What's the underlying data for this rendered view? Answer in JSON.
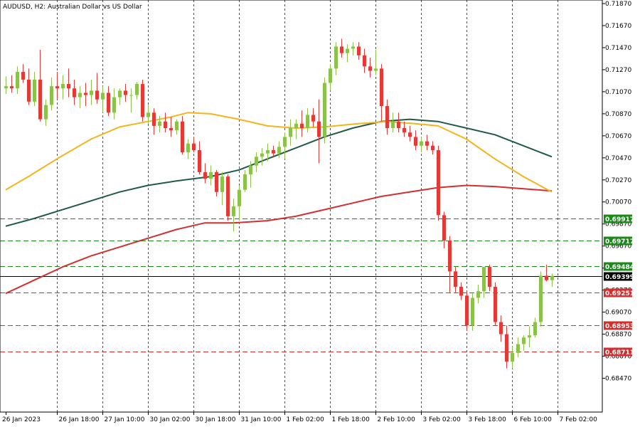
{
  "header": {
    "title": "AUDUSD, H2:  Australian Dollar vs US Dollar"
  },
  "colors": {
    "bull": "#8bc34a",
    "bear": "#e53935",
    "ma_fast": "#f5b41a",
    "ma_mid": "#1f5a48",
    "ma_slow": "#d32f2f",
    "support": "#1b8a1b",
    "resistance": "#d32f2f",
    "price": "#000000"
  },
  "chart_data": {
    "type": "candlestick",
    "symbol": "AUDUSD",
    "timeframe": "H2",
    "grid": "vertical dashed",
    "ylim": [
      0.6837,
      0.7187
    ],
    "y_ticks": [
      "0.71870",
      "0.71670",
      "0.71470",
      "0.71270",
      "0.71070",
      "0.70870",
      "0.70670",
      "0.70470",
      "0.70270",
      "0.70070",
      "0.69870",
      "0.69670",
      "0.69470",
      "0.69270",
      "0.69070",
      "0.68870",
      "0.68670",
      "0.68470"
    ],
    "x_labels": [
      {
        "label": "26 Jan 2023",
        "index": 0
      },
      {
        "label": "26 Jan 18:00",
        "index": 9
      },
      {
        "label": "27 Jan 10:00",
        "index": 17
      },
      {
        "label": "30 Jan 02:00",
        "index": 25
      },
      {
        "label": "30 Jan 18:00",
        "index": 33
      },
      {
        "label": "31 Jan 10:00",
        "index": 41
      },
      {
        "label": "1 Feb 02:00",
        "index": 49
      },
      {
        "label": "1 Feb 18:00",
        "index": 57
      },
      {
        "label": "2 Feb 10:00",
        "index": 65
      },
      {
        "label": "3 Feb 02:00",
        "index": 73
      },
      {
        "label": "3 Feb 18:00",
        "index": 81
      },
      {
        "label": "6 Feb 10:00",
        "index": 89
      },
      {
        "label": "7 Feb 02:00",
        "index": 97
      }
    ],
    "candles": [
      [
        0.711,
        0.7121,
        0.7105,
        0.7112
      ],
      [
        0.7112,
        0.7122,
        0.7106,
        0.711
      ],
      [
        0.711,
        0.713,
        0.7105,
        0.7125
      ],
      [
        0.7125,
        0.7132,
        0.7115,
        0.7118
      ],
      [
        0.7118,
        0.7128,
        0.7095,
        0.7098
      ],
      [
        0.7098,
        0.7125,
        0.7094,
        0.7118
      ],
      [
        0.7118,
        0.7145,
        0.708,
        0.7082
      ],
      [
        0.7082,
        0.71,
        0.7076,
        0.7095
      ],
      [
        0.7095,
        0.712,
        0.709,
        0.7112
      ],
      [
        0.7112,
        0.7125,
        0.71,
        0.711
      ],
      [
        0.711,
        0.7122,
        0.71,
        0.7114
      ],
      [
        0.7114,
        0.7128,
        0.7102,
        0.711
      ],
      [
        0.711,
        0.7118,
        0.7095,
        0.7102
      ],
      [
        0.7102,
        0.7112,
        0.7092,
        0.7106
      ],
      [
        0.7106,
        0.7115,
        0.7094,
        0.7104
      ],
      [
        0.7104,
        0.7118,
        0.7095,
        0.7108
      ],
      [
        0.7108,
        0.7124,
        0.7096,
        0.71
      ],
      [
        0.71,
        0.7112,
        0.7088,
        0.7106
      ],
      [
        0.7106,
        0.7112,
        0.7085,
        0.7088
      ],
      [
        0.7088,
        0.711,
        0.7082,
        0.7102
      ],
      [
        0.7102,
        0.711,
        0.7095,
        0.7108
      ],
      [
        0.7108,
        0.7114,
        0.7098,
        0.7104
      ],
      [
        0.7104,
        0.711,
        0.7088,
        0.7104
      ],
      [
        0.7104,
        0.7116,
        0.71,
        0.7114
      ],
      [
        0.7114,
        0.7118,
        0.708,
        0.7084
      ],
      [
        0.7084,
        0.7095,
        0.7078,
        0.7088
      ],
      [
        0.7088,
        0.7092,
        0.7068,
        0.7076
      ],
      [
        0.7076,
        0.7085,
        0.707,
        0.708
      ],
      [
        0.708,
        0.7088,
        0.707,
        0.7074
      ],
      [
        0.7074,
        0.7084,
        0.7066,
        0.7072
      ],
      [
        0.7072,
        0.7082,
        0.7068,
        0.708
      ],
      [
        0.708,
        0.7085,
        0.705,
        0.7052
      ],
      [
        0.7052,
        0.7064,
        0.7046,
        0.706
      ],
      [
        0.706,
        0.7066,
        0.7052,
        0.7054
      ],
      [
        0.7054,
        0.7062,
        0.7032,
        0.7034
      ],
      [
        0.7034,
        0.7042,
        0.7024,
        0.7028
      ],
      [
        0.7028,
        0.704,
        0.7022,
        0.7034
      ],
      [
        0.7034,
        0.7036,
        0.7012,
        0.7016
      ],
      [
        0.7016,
        0.7034,
        0.7004,
        0.703
      ],
      [
        0.703,
        0.7032,
        0.699,
        0.6994
      ],
      [
        0.6994,
        0.701,
        0.698,
        0.7003
      ],
      [
        0.7003,
        0.7022,
        0.699,
        0.7018
      ],
      [
        0.7018,
        0.7036,
        0.7016,
        0.7032
      ],
      [
        0.7032,
        0.7044,
        0.702,
        0.704
      ],
      [
        0.704,
        0.7052,
        0.7034,
        0.7048
      ],
      [
        0.7048,
        0.7056,
        0.704,
        0.7051
      ],
      [
        0.7051,
        0.706,
        0.7044,
        0.7054
      ],
      [
        0.7054,
        0.7058,
        0.7048,
        0.7051
      ],
      [
        0.7051,
        0.7062,
        0.7047,
        0.7057
      ],
      [
        0.7057,
        0.707,
        0.7046,
        0.7066
      ],
      [
        0.7066,
        0.7082,
        0.7058,
        0.7074
      ],
      [
        0.7074,
        0.7082,
        0.7064,
        0.7078
      ],
      [
        0.7078,
        0.709,
        0.7066,
        0.7074
      ],
      [
        0.7074,
        0.7092,
        0.707,
        0.7086
      ],
      [
        0.7086,
        0.7092,
        0.7075,
        0.708
      ],
      [
        0.708,
        0.71,
        0.7042,
        0.7066
      ],
      [
        0.7066,
        0.712,
        0.706,
        0.7115
      ],
      [
        0.7115,
        0.7132,
        0.7108,
        0.7128
      ],
      [
        0.7128,
        0.7152,
        0.7122,
        0.7148
      ],
      [
        0.7148,
        0.7155,
        0.7138,
        0.7142
      ],
      [
        0.7142,
        0.715,
        0.7134,
        0.7146
      ],
      [
        0.7146,
        0.7152,
        0.714,
        0.7148
      ],
      [
        0.7148,
        0.7152,
        0.7136,
        0.714
      ],
      [
        0.714,
        0.7146,
        0.7124,
        0.713
      ],
      [
        0.713,
        0.7138,
        0.712,
        0.7126
      ],
      [
        0.7126,
        0.7145,
        0.7122,
        0.7128
      ],
      [
        0.7128,
        0.7132,
        0.708,
        0.7094
      ],
      [
        0.7094,
        0.71,
        0.7068,
        0.7074
      ],
      [
        0.7074,
        0.7088,
        0.707,
        0.708
      ],
      [
        0.708,
        0.7088,
        0.707,
        0.7074
      ],
      [
        0.7074,
        0.708,
        0.7066,
        0.707
      ],
      [
        0.707,
        0.7076,
        0.7062,
        0.7066
      ],
      [
        0.7066,
        0.7072,
        0.7054,
        0.7058
      ],
      [
        0.7058,
        0.7066,
        0.7052,
        0.7062
      ],
      [
        0.7062,
        0.7068,
        0.7054,
        0.7058
      ],
      [
        0.7058,
        0.7062,
        0.705,
        0.7054
      ],
      [
        0.7054,
        0.7058,
        0.699,
        0.6995
      ],
      [
        0.6995,
        0.6998,
        0.6965,
        0.6972
      ],
      [
        0.6972,
        0.6976,
        0.6925,
        0.6944
      ],
      [
        0.6944,
        0.6948,
        0.6925,
        0.693
      ],
      [
        0.693,
        0.6934,
        0.6918,
        0.6922
      ],
      [
        0.6922,
        0.6926,
        0.689,
        0.6895
      ],
      [
        0.6895,
        0.6924,
        0.689,
        0.692
      ],
      [
        0.692,
        0.6932,
        0.6915,
        0.6926
      ],
      [
        0.6926,
        0.6948,
        0.692,
        0.6948
      ],
      [
        0.6948,
        0.695,
        0.6926,
        0.693
      ],
      [
        0.693,
        0.6934,
        0.6895,
        0.6898
      ],
      [
        0.6898,
        0.6904,
        0.688,
        0.6887
      ],
      [
        0.6887,
        0.6895,
        0.6856,
        0.6862
      ],
      [
        0.6862,
        0.6876,
        0.6856,
        0.687
      ],
      [
        0.687,
        0.6884,
        0.6866,
        0.6878
      ],
      [
        0.6878,
        0.6886,
        0.6872,
        0.6884
      ],
      [
        0.6884,
        0.6894,
        0.6875,
        0.6886
      ],
      [
        0.6886,
        0.6902,
        0.6884,
        0.6898
      ],
      [
        0.6898,
        0.6944,
        0.6894,
        0.694
      ],
      [
        0.694,
        0.695,
        0.6935,
        0.6936
      ],
      [
        0.6936,
        0.6942,
        0.693,
        0.694
      ]
    ],
    "ma_fast": [
      [
        0,
        0.7018
      ],
      [
        4,
        0.703
      ],
      [
        9,
        0.7046
      ],
      [
        15,
        0.7064
      ],
      [
        20,
        0.7075
      ],
      [
        25,
        0.708
      ],
      [
        29,
        0.7084
      ],
      [
        32,
        0.7088
      ],
      [
        36,
        0.7087
      ],
      [
        41,
        0.7082
      ],
      [
        46,
        0.7076
      ],
      [
        51,
        0.7074
      ],
      [
        56,
        0.7075
      ],
      [
        62,
        0.7078
      ],
      [
        67,
        0.708
      ],
      [
        72,
        0.7078
      ],
      [
        76,
        0.7076
      ],
      [
        81,
        0.7064
      ],
      [
        86,
        0.7046
      ],
      [
        91,
        0.703
      ],
      [
        96,
        0.7016
      ]
    ],
    "ma_mid": [
      [
        0,
        0.6985
      ],
      [
        5,
        0.6992
      ],
      [
        10,
        0.7
      ],
      [
        15,
        0.7008
      ],
      [
        20,
        0.7016
      ],
      [
        25,
        0.7022
      ],
      [
        30,
        0.7026
      ],
      [
        36,
        0.703
      ],
      [
        41,
        0.7036
      ],
      [
        46,
        0.7046
      ],
      [
        51,
        0.7056
      ],
      [
        56,
        0.7066
      ],
      [
        61,
        0.7074
      ],
      [
        66,
        0.708
      ],
      [
        71,
        0.7082
      ],
      [
        76,
        0.708
      ],
      [
        81,
        0.7074
      ],
      [
        86,
        0.7068
      ],
      [
        91,
        0.7058
      ],
      [
        96,
        0.7048
      ]
    ],
    "ma_slow": [
      [
        0,
        0.6924
      ],
      [
        5,
        0.6936
      ],
      [
        10,
        0.6948
      ],
      [
        15,
        0.6958
      ],
      [
        20,
        0.6966
      ],
      [
        25,
        0.6974
      ],
      [
        30,
        0.6982
      ],
      [
        35,
        0.6988
      ],
      [
        40,
        0.6988
      ],
      [
        46,
        0.699
      ],
      [
        51,
        0.6994
      ],
      [
        56,
        0.7
      ],
      [
        61,
        0.7006
      ],
      [
        66,
        0.7012
      ],
      [
        71,
        0.7016
      ],
      [
        76,
        0.702
      ],
      [
        81,
        0.7022
      ],
      [
        86,
        0.7021
      ],
      [
        91,
        0.7019
      ],
      [
        96,
        0.7017
      ]
    ],
    "levels": [
      {
        "value": 0.69917,
        "label": "0.69917",
        "kind": "support",
        "style": "dashed"
      },
      {
        "value": 0.69717,
        "label": "0.69717",
        "kind": "support",
        "style": "dashed"
      },
      {
        "value": 0.69484,
        "label": "0.69484",
        "kind": "support",
        "style": "dashed"
      },
      {
        "value": 0.69399,
        "label": "0.69399",
        "kind": "price",
        "style": "solid"
      },
      {
        "value": 0.69251,
        "label": "0.69251",
        "kind": "resistance",
        "style": "dashed"
      },
      {
        "value": 0.68953,
        "label": "0.68953",
        "kind": "resistance",
        "style": "dashed"
      },
      {
        "value": 0.68711,
        "label": "0.68711",
        "kind": "resistance",
        "style": "dashed"
      }
    ]
  }
}
